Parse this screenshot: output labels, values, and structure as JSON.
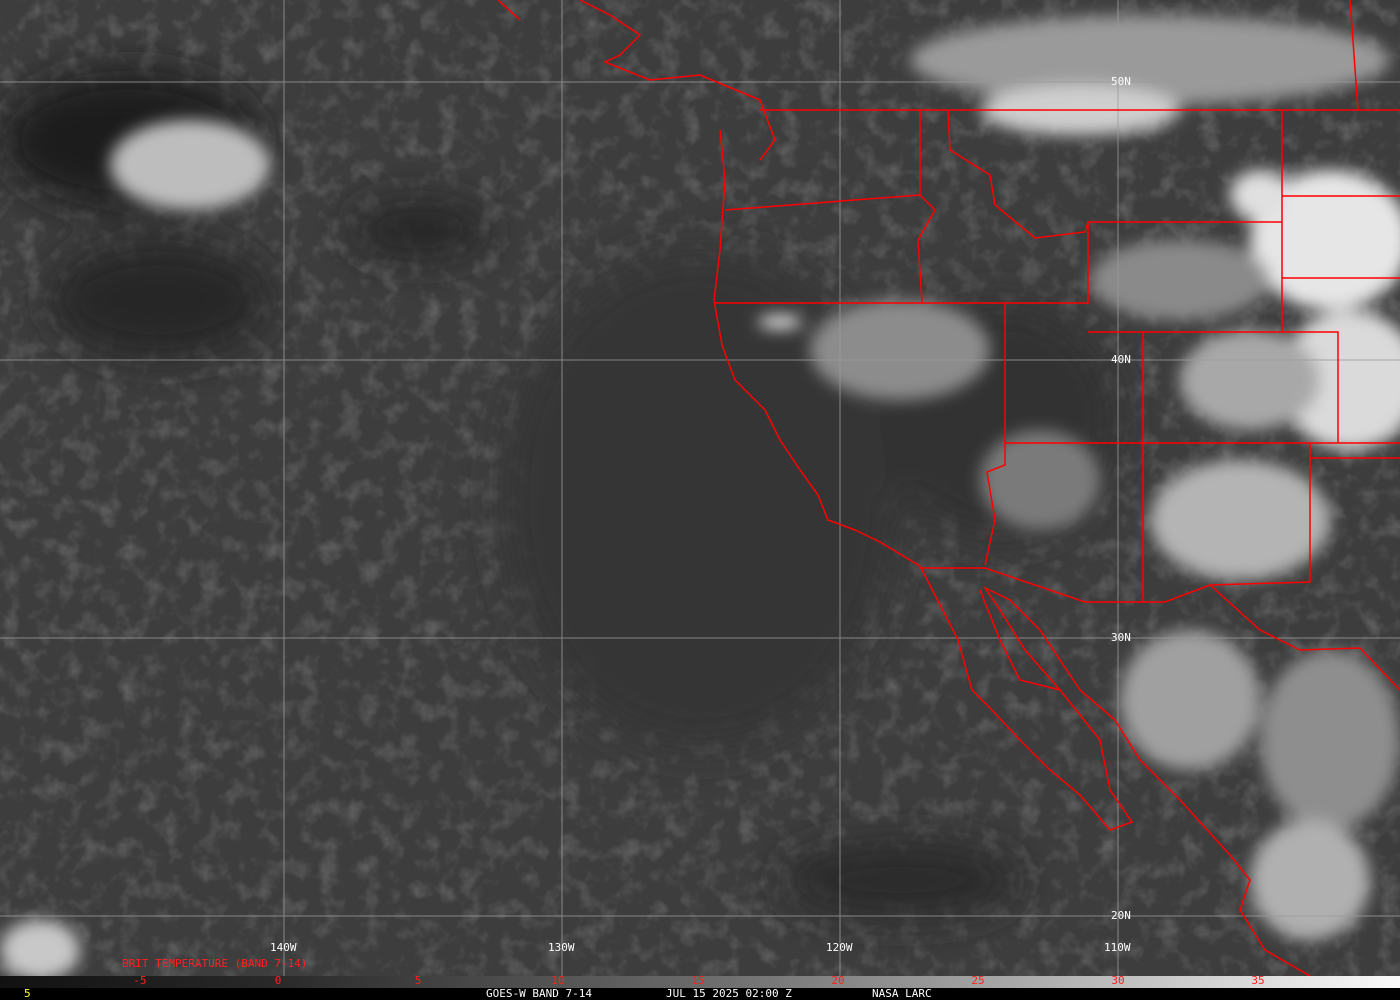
{
  "map": {
    "longitude_labels": [
      "140W",
      "130W",
      "120W",
      "110W"
    ],
    "latitude_labels": [
      "50N",
      "40N",
      "30N",
      "20N"
    ],
    "border_color": "#ff0000",
    "grid_color": "#9a9a9a"
  },
  "legend": {
    "title": "BRIT TEMPERATURE (BAND 7-14)",
    "ticks": [
      "-5",
      "0",
      "5",
      "10",
      "15",
      "20",
      "25",
      "30",
      "35"
    ],
    "tick_color": "#ff2020"
  },
  "footer": {
    "left_value": "5",
    "satellite": "GOES-W BAND 7-14",
    "datetime": "JUL 15 2025 02:00 Z",
    "source": "NASA LARC"
  }
}
